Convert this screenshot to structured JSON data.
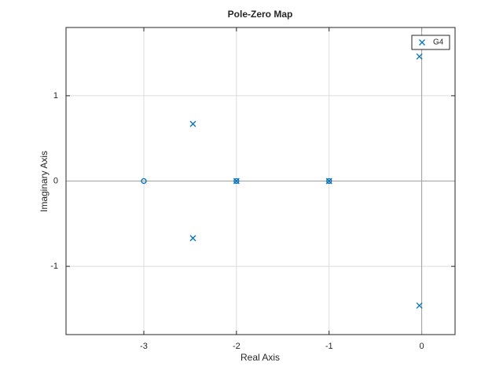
{
  "chart_data": {
    "type": "scatter",
    "title": "Pole-Zero Map",
    "xlabel": "Real Axis",
    "ylabel": "Imaginary Axis",
    "xlim": [
      -3.84,
      0.36
    ],
    "ylim": [
      -1.8,
      1.8
    ],
    "xticks": [
      -3,
      -2,
      -1,
      0
    ],
    "yticks": [
      -1,
      0,
      1
    ],
    "grid": true,
    "legend": "top-right",
    "series": [
      {
        "name": "G4",
        "color": "#0072bd",
        "marker": "x",
        "x": [
          -0.025,
          -0.025,
          -2.47,
          -2.47,
          -2,
          -1
        ],
        "values": [
          1.46,
          -1.46,
          0.67,
          -0.67,
          0,
          0
        ]
      },
      {
        "color": "#0072bd",
        "marker": "o",
        "x": [
          -3,
          -2,
          -1
        ],
        "values": [
          0,
          0,
          0
        ]
      }
    ]
  }
}
